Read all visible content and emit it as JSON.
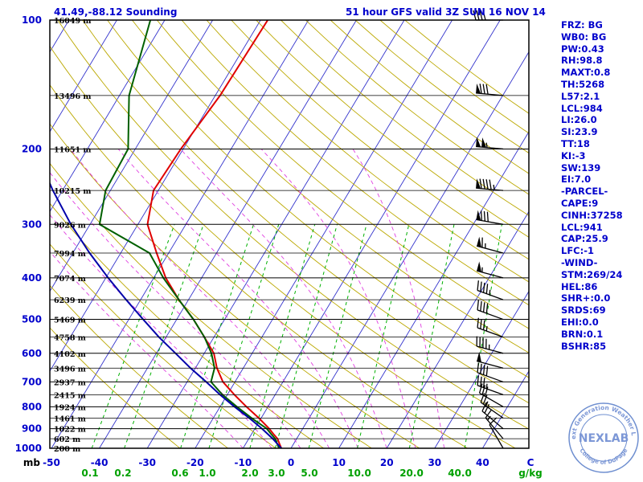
{
  "header": {
    "location": "41.49,-88.12 Sounding",
    "valid": "51 hour GFS valid 3Z SUN 16 NOV 14"
  },
  "chart_data": {
    "type": "line",
    "subtype": "skew-t log-p sounding",
    "pressure_axis": {
      "label": "mb",
      "ticks": [
        100,
        200,
        300,
        400,
        500,
        600,
        700,
        800,
        900,
        1000
      ],
      "range": [
        100,
        1000
      ],
      "scale": "log"
    },
    "temperature_axis": {
      "unit_label": "C",
      "ticks": [
        -50,
        -40,
        -30,
        -20,
        -10,
        0,
        10,
        20,
        30,
        40
      ],
      "range": [
        -50,
        50
      ]
    },
    "mixing_ratio_axis": {
      "unit_label": "g/kg",
      "ticks": [
        "0.1",
        "0.2",
        "0.6",
        "1.0",
        "2.0",
        "3.0",
        "5.0",
        "10.0",
        "20.0",
        "40.0"
      ]
    },
    "height_labels": [
      {
        "p": 100,
        "text": "16049 m"
      },
      {
        "p": 150,
        "text": "13496 m"
      },
      {
        "p": 200,
        "text": "11651 m"
      },
      {
        "p": 250,
        "text": "10215 m"
      },
      {
        "p": 300,
        "text": "9026 m"
      },
      {
        "p": 350,
        "text": "7994 m"
      },
      {
        "p": 400,
        "text": "7074 m"
      },
      {
        "p": 450,
        "text": "6239 m"
      },
      {
        "p": 500,
        "text": "5469 m"
      },
      {
        "p": 550,
        "text": "4758 m"
      },
      {
        "p": 600,
        "text": "4102 m"
      },
      {
        "p": 650,
        "text": "3496 m"
      },
      {
        "p": 700,
        "text": "2937 m"
      },
      {
        "p": 750,
        "text": "2415 m"
      },
      {
        "p": 800,
        "text": "1924 m"
      },
      {
        "p": 850,
        "text": "1461 m"
      },
      {
        "p": 900,
        "text": "1022 m"
      },
      {
        "p": 950,
        "text": "602 m"
      },
      {
        "p": 1000,
        "text": "200 m"
      }
    ],
    "series": [
      {
        "key": "temperature",
        "color": "#e00000",
        "points": [
          [
            1000,
            -2.0
          ],
          [
            975,
            -3.0
          ],
          [
            950,
            -4.0
          ],
          [
            925,
            -5.5
          ],
          [
            900,
            -7.0
          ],
          [
            850,
            -10.5
          ],
          [
            800,
            -14.5
          ],
          [
            750,
            -18.5
          ],
          [
            700,
            -22.5
          ],
          [
            650,
            -25.5
          ],
          [
            600,
            -28.0
          ],
          [
            550,
            -32.0
          ],
          [
            500,
            -36.5
          ],
          [
            450,
            -42.0
          ],
          [
            400,
            -47.5
          ],
          [
            350,
            -52.5
          ],
          [
            300,
            -58.0
          ],
          [
            250,
            -61.0
          ],
          [
            200,
            -60.5
          ],
          [
            150,
            -59.0
          ],
          [
            100,
            -58.5
          ]
        ]
      },
      {
        "key": "dewpoint",
        "color": "#006000",
        "points": [
          [
            1000,
            -2.5
          ],
          [
            975,
            -3.5
          ],
          [
            950,
            -4.5
          ],
          [
            925,
            -6.0
          ],
          [
            900,
            -7.5
          ],
          [
            850,
            -12.0
          ],
          [
            800,
            -16.5
          ],
          [
            750,
            -21.0
          ],
          [
            700,
            -25.0
          ],
          [
            650,
            -26.0
          ],
          [
            600,
            -28.5
          ],
          [
            550,
            -32.0
          ],
          [
            500,
            -36.5
          ],
          [
            450,
            -42.0
          ],
          [
            400,
            -48.0
          ],
          [
            350,
            -54.0
          ],
          [
            300,
            -68.0
          ],
          [
            250,
            -71.0
          ],
          [
            200,
            -71.5
          ],
          [
            150,
            -78.0
          ],
          [
            100,
            -83.0
          ]
        ]
      },
      {
        "key": "parcel",
        "color": "#0000aa",
        "points": [
          [
            1000,
            -2.0
          ],
          [
            950,
            -5.0
          ],
          [
            900,
            -8.5
          ],
          [
            850,
            -12.5
          ],
          [
            800,
            -17.0
          ],
          [
            750,
            -21.5
          ],
          [
            700,
            -26.0
          ],
          [
            650,
            -31.0
          ],
          [
            600,
            -36.0
          ],
          [
            550,
            -41.5
          ],
          [
            500,
            -47.0
          ],
          [
            450,
            -53.0
          ],
          [
            400,
            -59.5
          ],
          [
            350,
            -66.5
          ],
          [
            300,
            -74.0
          ],
          [
            250,
            -82.0
          ],
          [
            200,
            -91.0
          ],
          [
            150,
            -102.0
          ],
          [
            100,
            -113.0
          ]
        ]
      }
    ],
    "wind_barbs": [
      {
        "p": 100,
        "dir": 270,
        "spd": 40
      },
      {
        "p": 150,
        "dir": 275,
        "spd": 80
      },
      {
        "p": 200,
        "dir": 275,
        "spd": 105
      },
      {
        "p": 250,
        "dir": 275,
        "spd": 95
      },
      {
        "p": 300,
        "dir": 280,
        "spd": 80
      },
      {
        "p": 350,
        "dir": 285,
        "spd": 65
      },
      {
        "p": 400,
        "dir": 285,
        "spd": 55
      },
      {
        "p": 450,
        "dir": 290,
        "spd": 45
      },
      {
        "p": 500,
        "dir": 290,
        "spd": 40
      },
      {
        "p": 550,
        "dir": 290,
        "spd": 35
      },
      {
        "p": 600,
        "dir": 285,
        "spd": 45
      },
      {
        "p": 650,
        "dir": 285,
        "spd": 50
      },
      {
        "p": 700,
        "dir": 290,
        "spd": 40
      },
      {
        "p": 750,
        "dir": 290,
        "spd": 35
      },
      {
        "p": 800,
        "dir": 300,
        "spd": 30
      },
      {
        "p": 850,
        "dir": 305,
        "spd": 25
      },
      {
        "p": 900,
        "dir": 310,
        "spd": 20
      },
      {
        "p": 950,
        "dir": 320,
        "spd": 15
      },
      {
        "p": 1000,
        "dir": 330,
        "spd": 10
      }
    ]
  },
  "indices": [
    "FRZ: BG",
    "WB0: BG",
    "PW:0.43",
    "RH:98.8",
    "MAXT:0.8",
    "TH:5268",
    "L57:2.1",
    "LCL:984",
    "LI:26.0",
    "SI:23.9",
    "TT:18",
    "KI:-3",
    "SW:139",
    "EI:7.0",
    "-PARCEL-",
    "CAPE:9",
    "CINH:37258",
    "LCL:941",
    "CAP:25.9",
    "LFC:-1",
    "-WIND-",
    "STM:269/24",
    "HEL:86",
    "SHR+:0.0",
    "SRDS:69",
    "EHI:0.0",
    "BRN:0.1",
    "BSHR:85"
  ],
  "logo": {
    "name": "NEXLAB",
    "ring_top": "Next Generation Weather Lab",
    "ring_bottom": "College of DuPage"
  },
  "colors": {
    "frame": "#000000",
    "isotherm": "#3333cc",
    "dry_adiabat": "#bba800",
    "moist_adiabat": "#e040e0",
    "mixing_ratio": "#00b000",
    "text": "#0000cc",
    "mixing_label": "#00a000"
  }
}
